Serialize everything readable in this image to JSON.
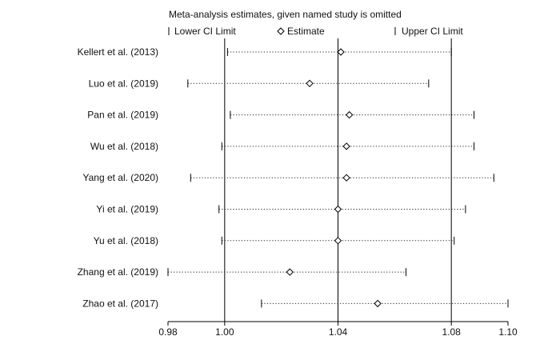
{
  "chart_data": {
    "type": "scatter",
    "title": "Meta-analysis estimates, given named study is omitted",
    "legend": {
      "placement": "top",
      "items": [
        {
          "marker": "cap",
          "label": "Lower CI Limit"
        },
        {
          "marker": "diamond",
          "label": "Estimate"
        },
        {
          "marker": "cap",
          "label": "Upper CI Limit"
        }
      ]
    },
    "x_axis": {
      "range": [
        0.98,
        1.1
      ],
      "ticks": [
        {
          "value": 0.98,
          "label": "0.98"
        },
        {
          "value": 1.0,
          "label": "1.00"
        },
        {
          "value": 1.04,
          "label": "1.04"
        },
        {
          "value": 1.08,
          "label": "1.08"
        },
        {
          "value": 1.1,
          "label": "1.10"
        }
      ],
      "reference_lines": [
        1.0,
        1.04,
        1.08
      ]
    },
    "studies": [
      {
        "label": "Kellert et al. (2013)",
        "lower": 1.001,
        "estimate": 1.041,
        "upper": 1.08
      },
      {
        "label": "Luo et al. (2019)",
        "lower": 0.987,
        "estimate": 1.03,
        "upper": 1.072
      },
      {
        "label": "Pan et al. (2019)",
        "lower": 1.002,
        "estimate": 1.044,
        "upper": 1.088
      },
      {
        "label": "Wu et al. (2018)",
        "lower": 0.999,
        "estimate": 1.043,
        "upper": 1.088
      },
      {
        "label": "Yang et al.  (2020)",
        "lower": 0.988,
        "estimate": 1.043,
        "upper": 1.095
      },
      {
        "label": "Yi et al. (2019)",
        "lower": 0.998,
        "estimate": 1.04,
        "upper": 1.085
      },
      {
        "label": "Yu et al. (2018)",
        "lower": 0.999,
        "estimate": 1.04,
        "upper": 1.081
      },
      {
        "label": "Zhang et al. (2019)",
        "lower": 0.98,
        "estimate": 1.023,
        "upper": 1.064
      },
      {
        "label": "Zhao et al. (2017)",
        "lower": 1.013,
        "estimate": 1.054,
        "upper": 1.1
      }
    ]
  }
}
